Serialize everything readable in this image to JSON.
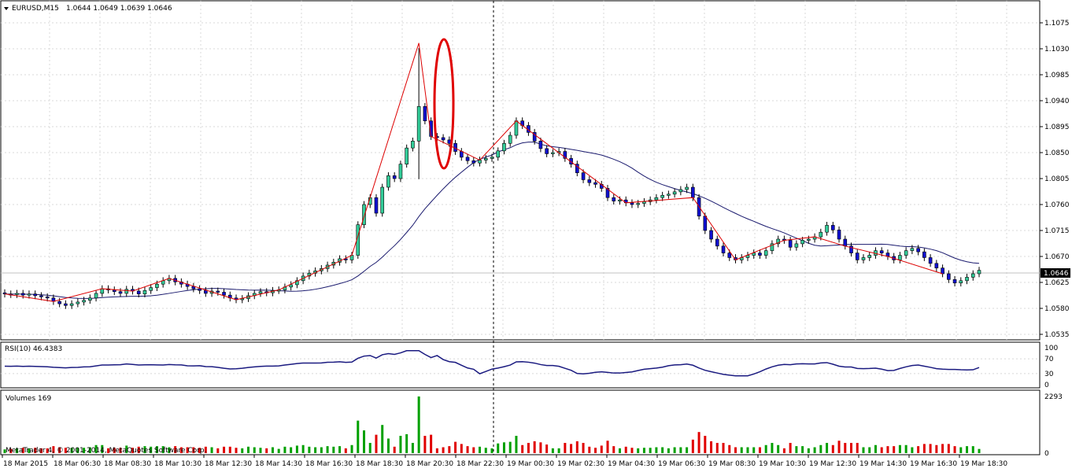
{
  "chart_header": {
    "symbol_tf": "EURUSD,M15",
    "ohlc": "1.0644 1.0649 1.0639 1.0646"
  },
  "rsi_panel": {
    "label": "RSI(10) 46.4383"
  },
  "volume_panel": {
    "label": "Volumes 169"
  },
  "copyright": "MetaTrader 4, © 2001-2014, MetaQuotes Software Corp.",
  "current_price_label": "1.0646",
  "colors": {
    "bull_candle": "#33cc99",
    "bear_candle": "#1010d0",
    "ma_line": "#1a1a6e",
    "zigzag": "#dd0000",
    "highlight_ellipse": "#e00000",
    "rsi_line": "#1a1a80",
    "volume_up": "#00a000",
    "volume_down": "#e00000"
  },
  "chart_data": [
    {
      "type": "candlestick",
      "title": "EURUSD,M15",
      "ylim": [
        1.0535,
        1.109
      ],
      "y_ticks": [
        "1.1075",
        "1.1030",
        "1.0985",
        "1.0940",
        "1.0895",
        "1.0850",
        "1.0805",
        "1.0760",
        "1.0715",
        "1.0670",
        "1.0625",
        "1.0580",
        "1.0535"
      ],
      "x_ticks": [
        "18 Mar 2015",
        "18 Mar 06:30",
        "18 Mar 08:30",
        "18 Mar 10:30",
        "18 Mar 12:30",
        "18 Mar 14:30",
        "18 Mar 16:30",
        "18 Mar 18:30",
        "18 Mar 20:30",
        "18 Mar 22:30",
        "19 Mar 00:30",
        "19 Mar 02:30",
        "19 Mar 04:30",
        "19 Mar 06:30",
        "19 Mar 08:30",
        "19 Mar 10:30",
        "19 Mar 12:30",
        "19 Mar 14:30",
        "19 Mar 16:30",
        "19 Mar 18:30"
      ],
      "close_series": [
        1.0605,
        1.0604,
        1.0606,
        1.0603,
        1.0605,
        1.0602,
        1.06,
        1.0598,
        1.0592,
        1.0588,
        1.0585,
        1.0588,
        1.0591,
        1.0594,
        1.0598,
        1.0606,
        1.0614,
        1.0612,
        1.0609,
        1.0606,
        1.0613,
        1.061,
        1.0605,
        1.0611,
        1.0616,
        1.0622,
        1.0628,
        1.0632,
        1.0626,
        1.0622,
        1.0618,
        1.0614,
        1.0611,
        1.0606,
        1.061,
        1.0608,
        1.0603,
        1.0598,
        1.0595,
        1.0597,
        1.0602,
        1.0606,
        1.0609,
        1.0607,
        1.0611,
        1.0612,
        1.0617,
        1.0621,
        1.0628,
        1.0636,
        1.0641,
        1.0645,
        1.0649,
        1.0655,
        1.066,
        1.0666,
        1.0664,
        1.0672,
        1.0725,
        1.076,
        1.0772,
        1.0745,
        1.079,
        1.081,
        1.0805,
        1.083,
        1.0858,
        1.087,
        1.093,
        1.0905,
        1.0878,
        1.0876,
        1.0872,
        1.0866,
        1.0852,
        1.0842,
        1.0836,
        1.0832,
        1.0837,
        1.084,
        1.0842,
        1.0853,
        1.0866,
        1.088,
        1.0905,
        1.0897,
        1.0885,
        1.087,
        1.0857,
        1.0848,
        1.085,
        1.0852,
        1.084,
        1.083,
        1.0815,
        1.0803,
        1.0798,
        1.0795,
        1.0788,
        1.0772,
        1.0766,
        1.0768,
        1.0763,
        1.076,
        1.0762,
        1.0765,
        1.0768,
        1.0772,
        1.0776,
        1.0778,
        1.0782,
        1.0786,
        1.079,
        1.0772,
        1.074,
        1.0715,
        1.07,
        1.0688,
        1.0676,
        1.0668,
        1.0664,
        1.0668,
        1.0672,
        1.0676,
        1.0672,
        1.068,
        1.0692,
        1.07,
        1.0698,
        1.0686,
        1.0692,
        1.0698,
        1.07,
        1.0704,
        1.0712,
        1.0724,
        1.0716,
        1.07,
        1.0688,
        1.0676,
        1.0664,
        1.0668,
        1.0672,
        1.068,
        1.0676,
        1.067,
        1.0664,
        1.0672,
        1.068,
        1.0684,
        1.0678,
        1.0668,
        1.0658,
        1.065,
        1.064,
        1.063,
        1.0624,
        1.0628,
        1.0634,
        1.064,
        1.0646
      ]
    },
    {
      "type": "line",
      "title": "RSI(10) 46.4383",
      "ylim": [
        0,
        100
      ],
      "y_ticks": [
        "100",
        "70",
        "30",
        "0"
      ],
      "last_value": 46.4383
    },
    {
      "type": "bar",
      "title": "Volumes 169",
      "y_ticks": [
        "2293",
        "0"
      ],
      "ylim": [
        0,
        2293
      ],
      "last_value": 169
    }
  ]
}
